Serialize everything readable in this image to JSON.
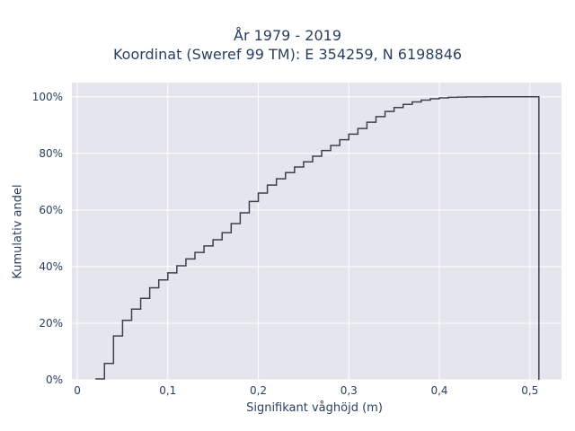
{
  "chart_data": {
    "type": "line",
    "step": true,
    "title": [
      "År 1979 - 2019",
      "Koordinat (Sweref 99 TM): E 354259, N 6198846"
    ],
    "xlabel": "Signifikant våghöjd (m)",
    "ylabel": "Kumulativ andel",
    "xlim": [
      -0.006,
      0.535
    ],
    "ylim": [
      0,
      1.05
    ],
    "x_ticks": [
      0,
      0.1,
      0.2,
      0.3,
      0.4,
      0.5
    ],
    "x_tick_labels": [
      "0",
      "0,1",
      "0,2",
      "0,3",
      "0,4",
      "0,5"
    ],
    "y_ticks": [
      0,
      0.2,
      0.4,
      0.6,
      0.8,
      1.0
    ],
    "y_tick_labels": [
      "0%",
      "20%",
      "40%",
      "60%",
      "80%",
      "100%"
    ],
    "grid": true,
    "colors": {
      "plot_bg": "#e5e5ee",
      "grid": "#ffffff",
      "line": "#3a4250",
      "text": "#2a3f5f"
    },
    "series": [
      {
        "x": [
          0.02,
          0.03,
          0.04,
          0.05,
          0.06,
          0.07,
          0.08,
          0.09,
          0.1,
          0.11,
          0.12,
          0.13,
          0.14,
          0.15,
          0.16,
          0.17,
          0.18,
          0.19,
          0.2,
          0.21,
          0.22,
          0.23,
          0.24,
          0.25,
          0.26,
          0.27,
          0.28,
          0.29,
          0.3,
          0.31,
          0.32,
          0.33,
          0.34,
          0.35,
          0.36,
          0.37,
          0.38,
          0.39,
          0.4,
          0.41,
          0.42,
          0.43,
          0.44,
          0.45,
          0.46,
          0.47,
          0.48,
          0.49,
          0.5,
          0.51
        ],
        "y": [
          0.003,
          0.058,
          0.155,
          0.21,
          0.25,
          0.288,
          0.325,
          0.353,
          0.378,
          0.403,
          0.427,
          0.45,
          0.473,
          0.495,
          0.52,
          0.552,
          0.59,
          0.63,
          0.66,
          0.688,
          0.71,
          0.732,
          0.752,
          0.77,
          0.79,
          0.81,
          0.828,
          0.848,
          0.868,
          0.888,
          0.91,
          0.93,
          0.948,
          0.962,
          0.973,
          0.982,
          0.988,
          0.993,
          0.996,
          0.998,
          0.999,
          0.9995,
          0.9998,
          0.9999,
          1.0,
          1.0,
          1.0,
          1.0,
          1.0,
          1.0
        ]
      }
    ]
  }
}
